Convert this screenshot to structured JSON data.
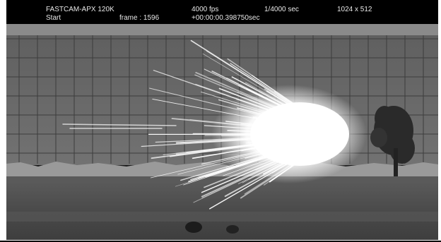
{
  "overlay": {
    "camera_model": "FASTCAM-APX 120K",
    "trigger_mode": "Start",
    "frame_label": "frame : 1596",
    "frame_rate": "4000 fps",
    "timestamp": "+00:00:00.398750sec",
    "shutter": "1/4000 sec",
    "resolution": "1024 x 512"
  },
  "colors": {
    "hud_background": "#000000",
    "hud_text": "#e8e8e8",
    "wall": "#6a6a6a",
    "grid": "#3c3c3c",
    "ground": "#4e4e4e",
    "spark": "#ffffff"
  }
}
